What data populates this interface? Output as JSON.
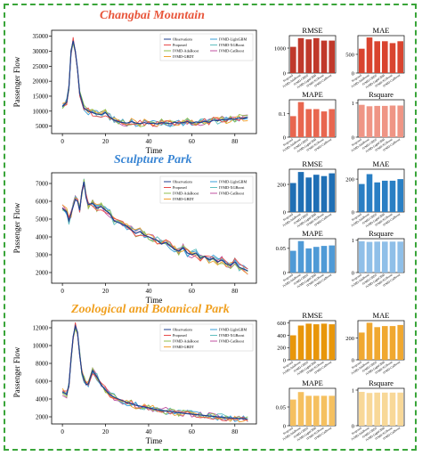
{
  "sections": [
    {
      "title": "Changbai Mountain",
      "title_color": "#e8553a",
      "line_chart": {
        "type": "line",
        "ylabel": "Passenger Flow",
        "xlabel": "Time",
        "xlim": [
          -5,
          90
        ],
        "ylim": [
          2500,
          37000
        ],
        "xticks": [
          0,
          20,
          40,
          60,
          80
        ],
        "yticks": [
          5000,
          10000,
          15000,
          20000,
          25000,
          30000,
          35000
        ],
        "legend": [
          "Observations",
          "Proposed",
          "IVMD-AdaBoost",
          "IVMD-GBDT",
          "IVMD-LightGBM",
          "IVMD-XGBoost",
          "IVMD-CatBoost"
        ],
        "legend_position": "top-right",
        "series_colors": [
          "#1f3f8f",
          "#e84a4a",
          "#8fbf4f",
          "#f0a030",
          "#3a9fd8",
          "#5fbfbf",
          "#c050a0"
        ],
        "observations": [
          [
            0,
            11500
          ],
          [
            2,
            13000
          ],
          [
            3,
            18000
          ],
          [
            4,
            30000
          ],
          [
            5,
            33500
          ],
          [
            6,
            30000
          ],
          [
            7,
            24000
          ],
          [
            8,
            16000
          ],
          [
            10,
            11000
          ],
          [
            12,
            10000
          ],
          [
            14,
            9500
          ],
          [
            16,
            9000
          ],
          [
            18,
            8800
          ],
          [
            20,
            9500
          ],
          [
            22,
            8000
          ],
          [
            24,
            7000
          ],
          [
            26,
            6500
          ],
          [
            28,
            6200
          ],
          [
            30,
            6000
          ],
          [
            32,
            6500
          ],
          [
            34,
            6000
          ],
          [
            36,
            5800
          ],
          [
            38,
            6200
          ],
          [
            40,
            5800
          ],
          [
            42,
            6000
          ],
          [
            44,
            5700
          ],
          [
            46,
            6200
          ],
          [
            48,
            6000
          ],
          [
            50,
            5800
          ],
          [
            52,
            6300
          ],
          [
            54,
            6000
          ],
          [
            56,
            6200
          ],
          [
            58,
            6500
          ],
          [
            60,
            6000
          ],
          [
            62,
            6400
          ],
          [
            64,
            6200
          ],
          [
            66,
            6600
          ],
          [
            68,
            6300
          ],
          [
            70,
            7000
          ],
          [
            72,
            6800
          ],
          [
            74,
            7200
          ],
          [
            76,
            7000
          ],
          [
            78,
            7500
          ],
          [
            80,
            7300
          ],
          [
            82,
            7800
          ],
          [
            84,
            7500
          ],
          [
            86,
            8000
          ]
        ]
      },
      "bar_charts": [
        {
          "title": "RMSE",
          "type": "bar",
          "color": "#c0392b",
          "categories": [
            "Proposed",
            "IVMD-AdaBoost",
            "IVMD-GBDT",
            "IVMD-LightGBM",
            "IVMD-XGBoost",
            "IVMD-CatBoost"
          ],
          "values": [
            1050,
            1400,
            1350,
            1400,
            1300,
            1300
          ],
          "ylim": [
            0,
            1500
          ],
          "yticks": [
            0,
            1000
          ]
        },
        {
          "title": "MAE",
          "type": "bar",
          "color": "#d9442f",
          "categories": [
            "Proposed",
            "IVMD-AdaBoost",
            "IVMD-GBDT",
            "IVMD-LightGBM",
            "IVMD-XGBoost",
            "IVMD-CatBoost"
          ],
          "values": [
            650,
            950,
            850,
            850,
            800,
            850
          ],
          "ylim": [
            0,
            1000
          ],
          "yticks": [
            0,
            500
          ]
        },
        {
          "title": "MAPE",
          "type": "bar",
          "color": "#e8664f",
          "categories": [
            "Proposed",
            "IVMD-AdaBoost",
            "IVMD-GBDT",
            "IVMD-LightGBM",
            "IVMD-XGBoost",
            "IVMD-CatBoost"
          ],
          "values": [
            0.09,
            0.15,
            0.12,
            0.12,
            0.11,
            0.12
          ],
          "ylim": [
            0,
            0.16
          ],
          "yticks": [
            0.0,
            0.1
          ]
        },
        {
          "title": "Rsquare",
          "type": "bar",
          "color": "#ef9585",
          "categories": [
            "Proposed",
            "IVMD-AdaBoost",
            "IVMD-GBDT",
            "IVMD-LightGBM",
            "IVMD-XGBoost",
            "IVMD-CatBoost"
          ],
          "values": [
            0.95,
            0.91,
            0.92,
            0.92,
            0.93,
            0.93
          ],
          "ylim": [
            0,
            1.1
          ],
          "yticks": [
            0,
            1
          ]
        }
      ]
    },
    {
      "title": "Sculpture Park",
      "title_color": "#3a86d4",
      "line_chart": {
        "type": "line",
        "ylabel": "Passenger Flow",
        "xlabel": "Time",
        "xlim": [
          -5,
          90
        ],
        "ylim": [
          1400,
          7600
        ],
        "xticks": [
          0,
          20,
          40,
          60,
          80
        ],
        "yticks": [
          2000,
          3000,
          4000,
          5000,
          6000,
          7000
        ],
        "legend": [
          "Observations",
          "Proposed",
          "IVMD-AdaBoost",
          "IVMD-GBDT",
          "IVMD-LightGBM",
          "IVMD-XGBoost",
          "IVMD-CatBoost"
        ],
        "legend_position": "top-right",
        "series_colors": [
          "#1f3f8f",
          "#e84a4a",
          "#8fbf4f",
          "#f0a030",
          "#3a9fd8",
          "#5fbfbf",
          "#c050a0"
        ],
        "observations": [
          [
            0,
            5600
          ],
          [
            2,
            5400
          ],
          [
            3,
            4900
          ],
          [
            4,
            5300
          ],
          [
            5,
            5700
          ],
          [
            6,
            6100
          ],
          [
            7,
            6000
          ],
          [
            8,
            5500
          ],
          [
            9,
            6500
          ],
          [
            10,
            7100
          ],
          [
            11,
            6200
          ],
          [
            12,
            5800
          ],
          [
            14,
            5900
          ],
          [
            16,
            5600
          ],
          [
            18,
            5700
          ],
          [
            20,
            5500
          ],
          [
            22,
            5300
          ],
          [
            24,
            4900
          ],
          [
            26,
            4800
          ],
          [
            28,
            4700
          ],
          [
            30,
            4600
          ],
          [
            32,
            4400
          ],
          [
            34,
            4200
          ],
          [
            36,
            4300
          ],
          [
            38,
            4100
          ],
          [
            40,
            4000
          ],
          [
            42,
            3900
          ],
          [
            44,
            3800
          ],
          [
            46,
            3600
          ],
          [
            48,
            3700
          ],
          [
            50,
            3500
          ],
          [
            52,
            3300
          ],
          [
            54,
            3200
          ],
          [
            56,
            3400
          ],
          [
            58,
            3100
          ],
          [
            60,
            3000
          ],
          [
            62,
            3100
          ],
          [
            64,
            2800
          ],
          [
            66,
            2900
          ],
          [
            68,
            2700
          ],
          [
            70,
            2800
          ],
          [
            72,
            2600
          ],
          [
            74,
            2700
          ],
          [
            76,
            2500
          ],
          [
            78,
            2400
          ],
          [
            80,
            2600
          ],
          [
            82,
            2300
          ],
          [
            84,
            2200
          ],
          [
            86,
            2100
          ]
        ]
      },
      "bar_charts": [
        {
          "title": "RMSE",
          "type": "bar",
          "color": "#1f6fb5",
          "categories": [
            "Proposed",
            "IVMD-AdaBoost",
            "IVMD-GBDT",
            "IVMD-LightGBM",
            "IVMD-XGBoost",
            "IVMD-CatBoost"
          ],
          "values": [
            210,
            290,
            250,
            270,
            260,
            280
          ],
          "ylim": [
            0,
            310
          ],
          "yticks": [
            0,
            200
          ]
        },
        {
          "title": "MAE",
          "type": "bar",
          "color": "#2a7fc4",
          "categories": [
            "Proposed",
            "IVMD-AdaBoost",
            "IVMD-GBDT",
            "IVMD-LightGBM",
            "IVMD-XGBoost",
            "IVMD-CatBoost"
          ],
          "values": [
            170,
            230,
            180,
            190,
            190,
            200
          ],
          "ylim": [
            0,
            260
          ],
          "yticks": [
            0,
            200
          ]
        },
        {
          "title": "MAPE",
          "type": "bar",
          "color": "#4f9ad6",
          "categories": [
            "Proposed",
            "IVMD-AdaBoost",
            "IVMD-GBDT",
            "IVMD-LightGBM",
            "IVMD-XGBoost",
            "IVMD-CatBoost"
          ],
          "values": [
            0.045,
            0.065,
            0.05,
            0.053,
            0.055,
            0.056
          ],
          "ylim": [
            0,
            0.07
          ],
          "yticks": [
            0.0,
            0.05
          ]
        },
        {
          "title": "Rsquare",
          "type": "bar",
          "color": "#8fbfe8",
          "categories": [
            "Proposed",
            "IVMD-AdaBoost",
            "IVMD-GBDT",
            "IVMD-LightGBM",
            "IVMD-XGBoost",
            "IVMD-CatBoost"
          ],
          "values": [
            0.97,
            0.95,
            0.96,
            0.96,
            0.96,
            0.96
          ],
          "ylim": [
            0,
            1.05
          ],
          "yticks": [
            0,
            1
          ]
        }
      ]
    },
    {
      "title": "Zoological and Botanical Park",
      "title_color": "#f0a020",
      "line_chart": {
        "type": "line",
        "ylabel": "Passenger Flow",
        "xlabel": "Time",
        "xlim": [
          -5,
          90
        ],
        "ylim": [
          1200,
          12800
        ],
        "xticks": [
          0,
          20,
          40,
          60,
          80
        ],
        "yticks": [
          2000,
          4000,
          6000,
          8000,
          10000,
          12000
        ],
        "legend": [
          "Observations",
          "Proposed",
          "IVMD-AdaBoost",
          "IVMD-GBDT",
          "IVMD-LightGBM",
          "IVMD-XGBoost",
          "IVMD-CatBoost"
        ],
        "legend_position": "top-right",
        "series_colors": [
          "#1f3f8f",
          "#e84a4a",
          "#8fbf4f",
          "#f0a030",
          "#3a9fd8",
          "#5fbfbf",
          "#c050a0"
        ],
        "observations": [
          [
            0,
            4800
          ],
          [
            2,
            4500
          ],
          [
            3,
            5500
          ],
          [
            4,
            8500
          ],
          [
            5,
            11000
          ],
          [
            6,
            12200
          ],
          [
            7,
            11500
          ],
          [
            8,
            9000
          ],
          [
            9,
            7000
          ],
          [
            10,
            6200
          ],
          [
            11,
            5600
          ],
          [
            12,
            5700
          ],
          [
            14,
            7200
          ],
          [
            16,
            6500
          ],
          [
            18,
            5600
          ],
          [
            20,
            5000
          ],
          [
            22,
            4500
          ],
          [
            24,
            4200
          ],
          [
            26,
            4000
          ],
          [
            28,
            3800
          ],
          [
            30,
            3600
          ],
          [
            32,
            3500
          ],
          [
            34,
            3300
          ],
          [
            36,
            3200
          ],
          [
            38,
            3100
          ],
          [
            40,
            3000
          ],
          [
            42,
            2900
          ],
          [
            44,
            2800
          ],
          [
            46,
            2700
          ],
          [
            48,
            2650
          ],
          [
            50,
            2600
          ],
          [
            52,
            2500
          ],
          [
            54,
            2450
          ],
          [
            56,
            2400
          ],
          [
            58,
            2350
          ],
          [
            60,
            2300
          ],
          [
            62,
            2250
          ],
          [
            64,
            2200
          ],
          [
            66,
            2150
          ],
          [
            68,
            2100
          ],
          [
            70,
            2050
          ],
          [
            72,
            2000
          ],
          [
            74,
            1950
          ],
          [
            76,
            1900
          ],
          [
            78,
            1880
          ],
          [
            80,
            1850
          ],
          [
            82,
            1820
          ],
          [
            84,
            1800
          ],
          [
            86,
            1750
          ]
        ]
      },
      "bar_charts": [
        {
          "title": "RMSE",
          "type": "bar",
          "color": "#e8960a",
          "categories": [
            "Proposed",
            "IVMD-AdaBoost",
            "IVMD-GBDT",
            "IVMD-LightGBM",
            "IVMD-XGBoost",
            "IVMD-CatBoost"
          ],
          "values": [
            400,
            560,
            590,
            580,
            590,
            580
          ],
          "ylim": [
            0,
            640
          ],
          "yticks": [
            0,
            200,
            400,
            600
          ]
        },
        {
          "title": "MAE",
          "type": "bar",
          "color": "#f0a830",
          "categories": [
            "Proposed",
            "IVMD-AdaBoost",
            "IVMD-GBDT",
            "IVMD-LightGBM",
            "IVMD-XGBoost",
            "IVMD-CatBoost"
          ],
          "values": [
            250,
            340,
            300,
            310,
            310,
            320
          ],
          "ylim": [
            0,
            360
          ],
          "yticks": [
            0,
            200
          ]
        },
        {
          "title": "MAPE",
          "type": "bar",
          "color": "#f5c060",
          "categories": [
            "Proposed",
            "IVMD-AdaBoost",
            "IVMD-GBDT",
            "IVMD-LightGBM",
            "IVMD-XGBoost",
            "IVMD-CatBoost"
          ],
          "values": [
            0.07,
            0.09,
            0.08,
            0.08,
            0.08,
            0.08
          ],
          "ylim": [
            0,
            0.1
          ],
          "yticks": [
            0.0,
            0.05
          ]
        },
        {
          "title": "Rsquare",
          "type": "bar",
          "color": "#f8d898",
          "categories": [
            "Proposed",
            "IVMD-AdaBoost",
            "IVMD-GBDT",
            "IVMD-LightGBM",
            "IVMD-XGBoost",
            "IVMD-CatBoost"
          ],
          "values": [
            0.95,
            0.92,
            0.93,
            0.93,
            0.93,
            0.93
          ],
          "ylim": [
            0,
            1.05
          ],
          "yticks": [
            0,
            1
          ]
        }
      ]
    }
  ]
}
